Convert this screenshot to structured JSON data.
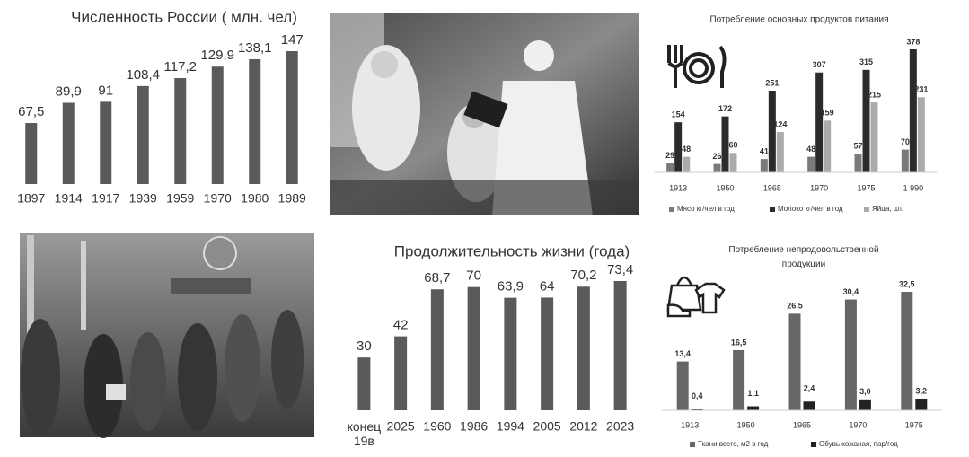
{
  "chart_data": [
    {
      "type": "bar",
      "title": "Численность России ( млн. чел)",
      "categories": [
        "1897",
        "1914",
        "1917",
        "1939",
        "1959",
        "1970",
        "1980",
        "1989"
      ],
      "values": [
        67.5,
        89.9,
        91,
        108.4,
        117.2,
        129.9,
        138.1,
        147
      ],
      "value_labels": [
        "67,5",
        "89,9",
        "91",
        "108,4",
        "117,2",
        "129,9",
        "138,1",
        "147"
      ],
      "color": "#5a5a5a"
    },
    {
      "type": "grouped-bar",
      "title": "Потребление основных продуктов питания",
      "categories": [
        "1913",
        "1950",
        "1965",
        "1970",
        "1975",
        "1 990"
      ],
      "series": [
        {
          "name": "Мясо кг/чел в год",
          "color": "#7a7a7a",
          "values": [
            29,
            26,
            41,
            48,
            57,
            70
          ]
        },
        {
          "name": "Молоко кг/чел в год",
          "color": "#2b2b2b",
          "values": [
            154,
            172,
            251,
            307,
            315,
            378
          ]
        },
        {
          "name": "Яйца, шт.",
          "color": "#ababab",
          "values": [
            48,
            60,
            124,
            159,
            215,
            231
          ]
        }
      ],
      "legend": "bottom"
    },
    {
      "type": "bar",
      "title": "Продолжительность жизни (года)",
      "categories": [
        "конец\n19в",
        "2025",
        "1960",
        "1986",
        "1994",
        "2005",
        "2012",
        "2023"
      ],
      "values": [
        30,
        42,
        68.7,
        70,
        63.9,
        64,
        70.2,
        73.4
      ],
      "value_labels": [
        "30",
        "42",
        "68,7",
        "70",
        "63,9",
        "64",
        "70,2",
        "73,4"
      ],
      "color": "#5a5a5a"
    },
    {
      "type": "grouped-bar",
      "title": "Потребление непродовольственной\nпродукции",
      "categories": [
        "1913",
        "1950",
        "1965",
        "1970",
        "1975"
      ],
      "series": [
        {
          "name": "Ткани всего, м2 в год",
          "color": "#666666",
          "values": [
            13.4,
            16.5,
            26.5,
            30.4,
            32.5
          ],
          "value_labels": [
            "13,4",
            "16,5",
            "26,5",
            "30,4",
            "32,5"
          ]
        },
        {
          "name": "Обувь кожаная, пар/год",
          "color": "#222222",
          "values": [
            0.4,
            1.1,
            2.4,
            3.0,
            3.2
          ],
          "value_labels": [
            "0,4",
            "1,1",
            "2,4",
            "3,0",
            "3,2"
          ]
        }
      ],
      "legend": "bottom"
    }
  ]
}
